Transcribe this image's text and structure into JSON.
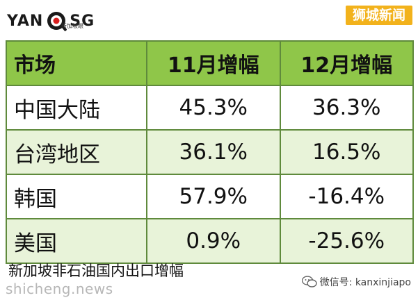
{
  "logo": {
    "part1": "YAN",
    "part2": "SG",
    "sub": "新加坡眼"
  },
  "brand_tag": "狮城新闻",
  "table": {
    "headers": [
      "市场",
      "11月增幅",
      "12月增幅"
    ],
    "rows": [
      {
        "market": "中国大陆",
        "nov": "45.3%",
        "dec": "36.3%"
      },
      {
        "market": "台湾地区",
        "nov": "36.1%",
        "dec": "16.5%"
      },
      {
        "market": "韩国",
        "nov": "57.9%",
        "dec": "-16.4%"
      },
      {
        "market": "美国",
        "nov": "0.9%",
        "dec": "-25.6%"
      }
    ]
  },
  "caption": "新加坡非石油国内出口增幅",
  "watermark": {
    "site": "shicheng.news",
    "wechat": "微信号: kanxinjiapo"
  },
  "colors": {
    "header_bg": "#8fc649",
    "row_shade": "#e8f3d9",
    "border": "#5f8a3c",
    "brand": "#f2b21c"
  }
}
